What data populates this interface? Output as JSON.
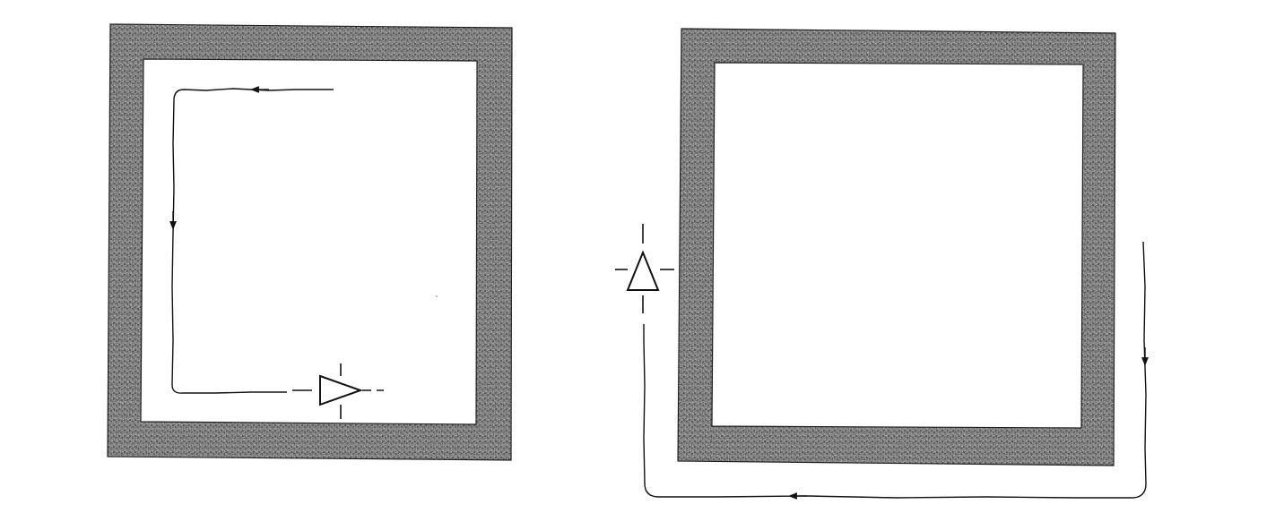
{
  "figure": {
    "panels": [
      {
        "id": "left-panel",
        "wall_texture": "stippled-gray",
        "path_direction": "counterclockwise-inside",
        "sensor_orientation": "pointing-right",
        "sensor_location": "inside-bottom"
      },
      {
        "id": "right-panel",
        "wall_texture": "stippled-gray",
        "path_direction": "clockwise-outside",
        "sensor_orientation": "pointing-up",
        "sensor_location": "outside-left"
      }
    ],
    "colors": {
      "line": "#111111",
      "wall_base": "#a9a9a9",
      "wall_dark": "#555555",
      "wall_light": "#dcdcdc",
      "background": "#ffffff"
    }
  }
}
